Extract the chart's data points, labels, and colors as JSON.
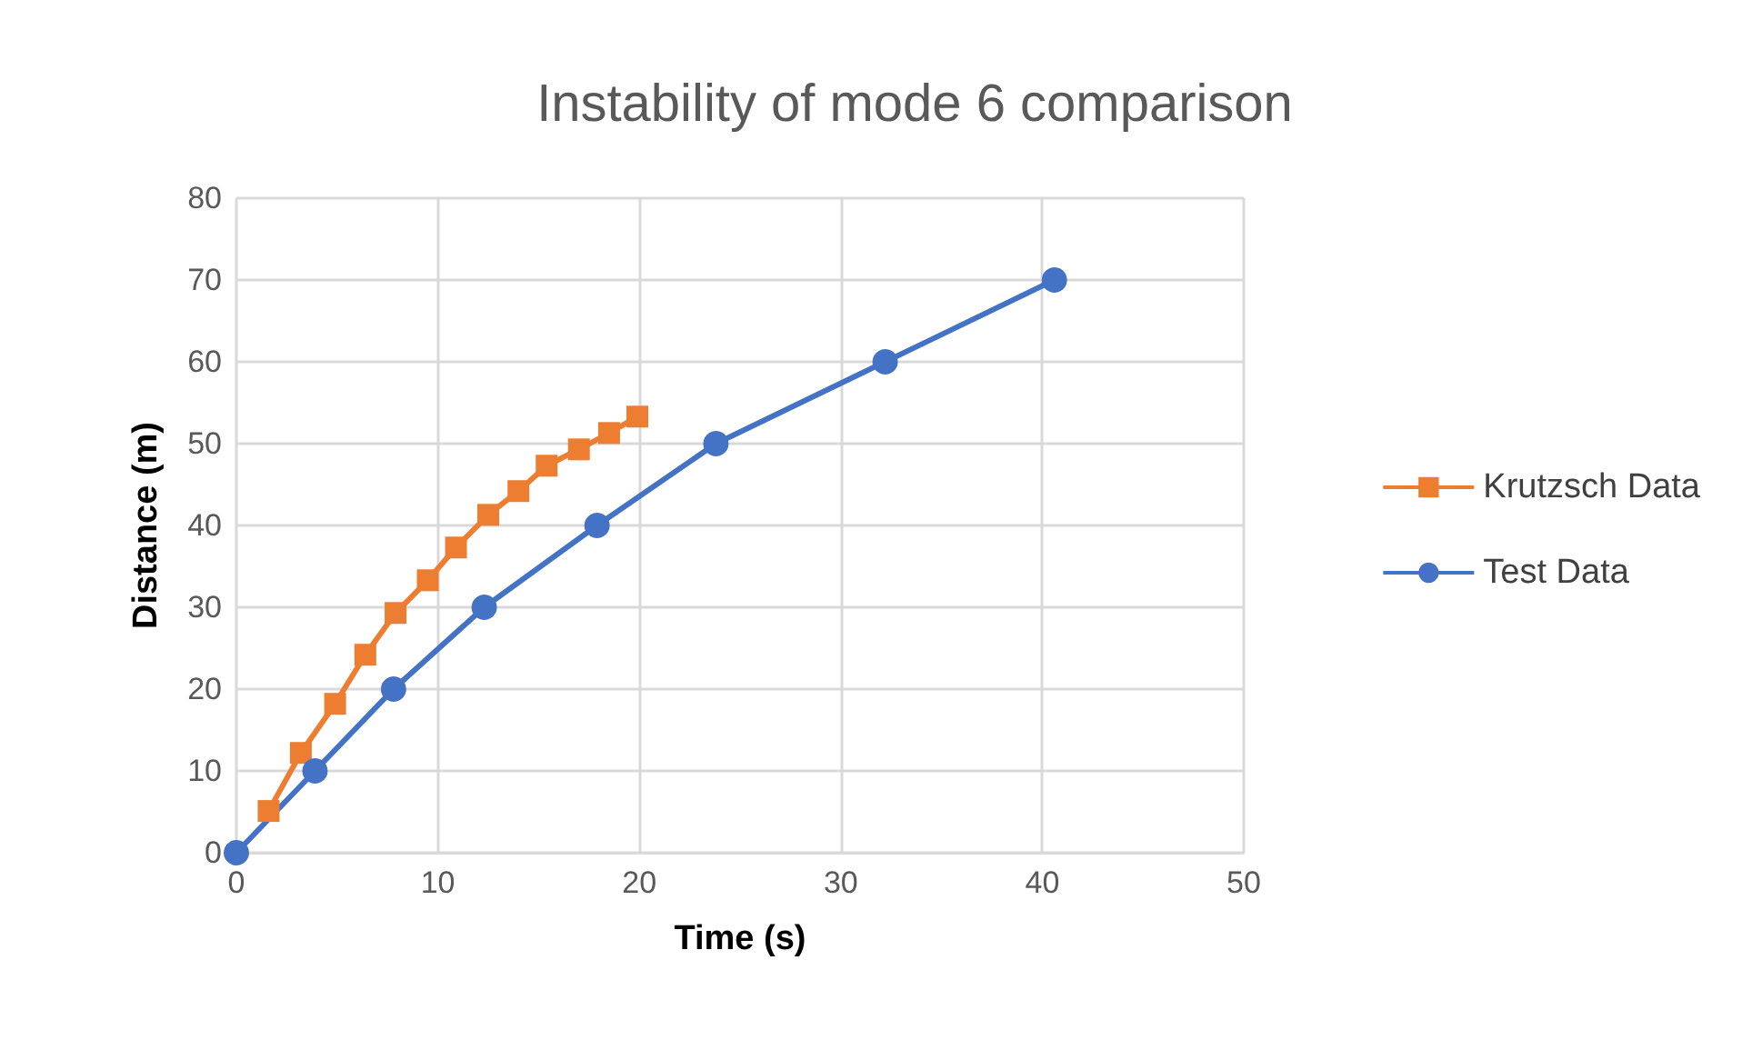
{
  "chart_data": {
    "type": "line",
    "title": "Instability of mode 6 comparison",
    "xlabel": "Time (s)",
    "ylabel": "Distance (m)",
    "xlim": [
      0,
      50
    ],
    "xticks": [
      0,
      10,
      20,
      30,
      40,
      50
    ],
    "ylim": [
      0,
      80
    ],
    "yticks": [
      0,
      10,
      20,
      30,
      40,
      50,
      60,
      70,
      80
    ],
    "grid": true,
    "legend": "right",
    "line_style": "solid",
    "series": [
      {
        "name": "Krutzsch Data",
        "color": "#ed7d31",
        "marker": "square",
        "x": [
          1.6,
          3.2,
          4.9,
          6.4,
          7.9,
          9.5,
          10.9,
          12.5,
          14.0,
          15.4,
          17.0,
          18.5,
          19.9
        ],
        "values": [
          5.1,
          12.2,
          18.2,
          24.2,
          29.3,
          33.3,
          37.3,
          41.3,
          44.2,
          47.3,
          49.3,
          51.3,
          53.3
        ]
      },
      {
        "name": "Test Data",
        "color": "#4472c4",
        "marker": "circle",
        "x": [
          0,
          3.9,
          7.8,
          12.3,
          17.9,
          23.8,
          32.2,
          40.6
        ],
        "values": [
          0,
          10,
          20,
          30,
          40,
          50,
          60,
          70
        ]
      }
    ]
  }
}
